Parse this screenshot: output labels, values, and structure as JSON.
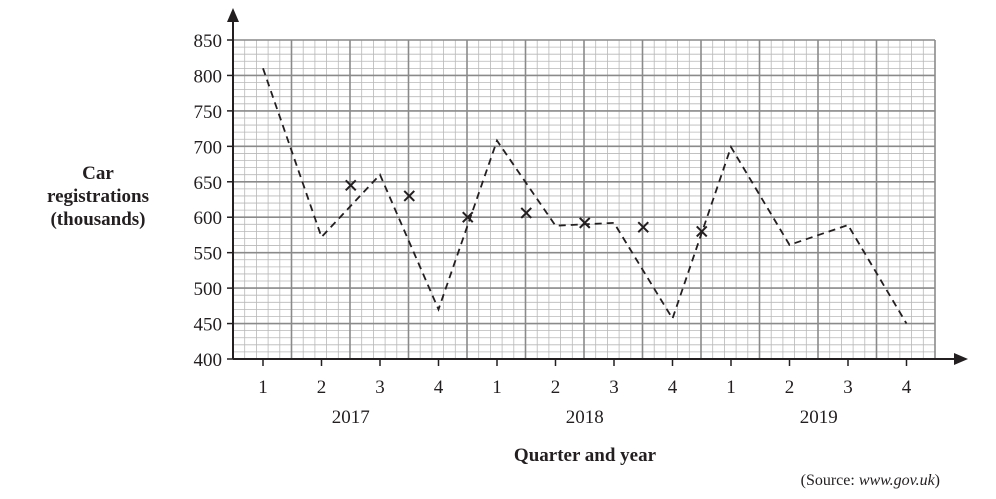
{
  "chart_data": {
    "type": "line",
    "ylabel_lines": [
      "Car",
      "registrations",
      "(thousands)"
    ],
    "xlabel": "Quarter and year",
    "source_prefix": "(Source: ",
    "source_site": "www.gov.uk",
    "source_suffix": ")",
    "ylim": [
      400,
      850
    ],
    "yticks": [
      400,
      450,
      500,
      550,
      600,
      650,
      700,
      750,
      800,
      850
    ],
    "grid": true,
    "categories": [
      "1",
      "2",
      "3",
      "4",
      "1",
      "2",
      "3",
      "4",
      "1",
      "2",
      "3",
      "4"
    ],
    "years": [
      "2017",
      "2018",
      "2019"
    ],
    "series": [
      {
        "style": "dashed",
        "values": [
          810,
          572,
          660,
          470,
          708,
          588,
          592,
          457,
          699,
          561,
          589,
          450
        ]
      }
    ],
    "moving_average_points": [
      {
        "x": 2.5,
        "y": 645
      },
      {
        "x": 3.5,
        "y": 630
      },
      {
        "x": 4.5,
        "y": 600
      },
      {
        "x": 5.5,
        "y": 606
      },
      {
        "x": 6.5,
        "y": 592
      },
      {
        "x": 7.5,
        "y": 586
      },
      {
        "x": 8.5,
        "y": 580
      }
    ]
  }
}
